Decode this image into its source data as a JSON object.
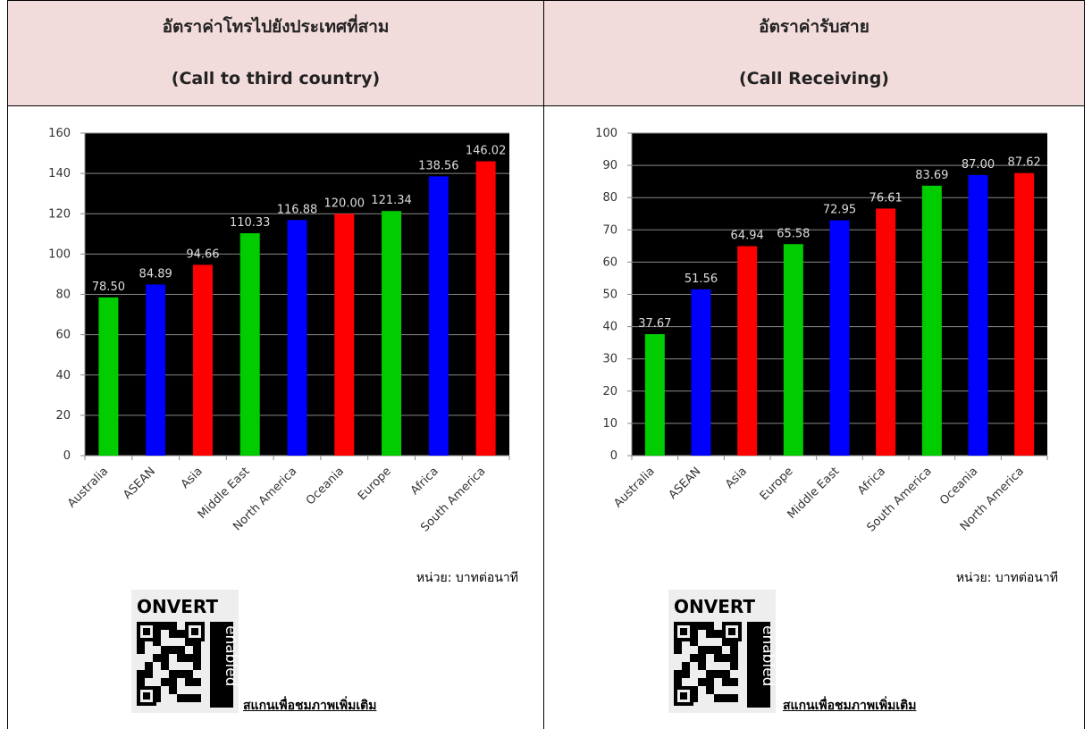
{
  "table": {
    "headers": [
      {
        "title": "อัตราค่าโทรไปยังประเทศที่สาม",
        "subtitle": "(Call to third country)"
      },
      {
        "title": "อัตราค่ารับสาย",
        "subtitle": "(Call Receiving)"
      }
    ]
  },
  "chart_data": [
    {
      "type": "bar",
      "categories": [
        "Australia",
        "ASEAN",
        "Asia",
        "Middle East",
        "North America",
        "Oceania",
        "Europe",
        "Africa",
        "South America"
      ],
      "values": [
        78.5,
        84.89,
        94.66,
        110.33,
        116.88,
        120,
        121.34,
        138.56,
        146.02
      ],
      "value_labels": [
        "78.50",
        "84.89",
        "94.66",
        "110.33",
        "116.88",
        "120.00",
        "121.34",
        "138.56",
        "146.02"
      ],
      "colors": [
        "#00cc00",
        "#0000ff",
        "#ff0000",
        "#00cc00",
        "#0000ff",
        "#ff0000",
        "#00cc00",
        "#0000ff",
        "#ff0000"
      ],
      "ylim": [
        0,
        160
      ],
      "yticks": [
        0,
        20,
        40,
        60,
        80,
        100,
        120,
        140,
        160
      ],
      "grid": true
    },
    {
      "type": "bar",
      "categories": [
        "Australia",
        "ASEAN",
        "Asia",
        "Europe",
        "Middle East",
        "Africa",
        "South America",
        "Oceania",
        "North America"
      ],
      "values": [
        37.67,
        51.56,
        64.94,
        65.58,
        72.95,
        76.61,
        83.69,
        87,
        87.62
      ],
      "value_labels": [
        "37.67",
        "51.56",
        "64.94",
        "65.58",
        "72.95",
        "76.61",
        "83.69",
        "87.00",
        "87.62"
      ],
      "colors": [
        "#00cc00",
        "#0000ff",
        "#ff0000",
        "#00cc00",
        "#0000ff",
        "#ff0000",
        "#00cc00",
        "#0000ff",
        "#ff0000"
      ],
      "ylim": [
        0,
        100
      ],
      "yticks": [
        0,
        10,
        20,
        30,
        40,
        50,
        60,
        70,
        80,
        90,
        100
      ],
      "grid": true
    }
  ],
  "unit_notes": [
    "หน่วย: บาทต่อนาที",
    "หน่วย: บาทต่อนาที"
  ],
  "qr": {
    "brand": "ONVERT",
    "tag": "enabled"
  },
  "links": [
    "สแกนเพื่อชมภาพเพิ่มเติม",
    "สแกนเพื่อชมภาพเพิ่มเติม"
  ]
}
